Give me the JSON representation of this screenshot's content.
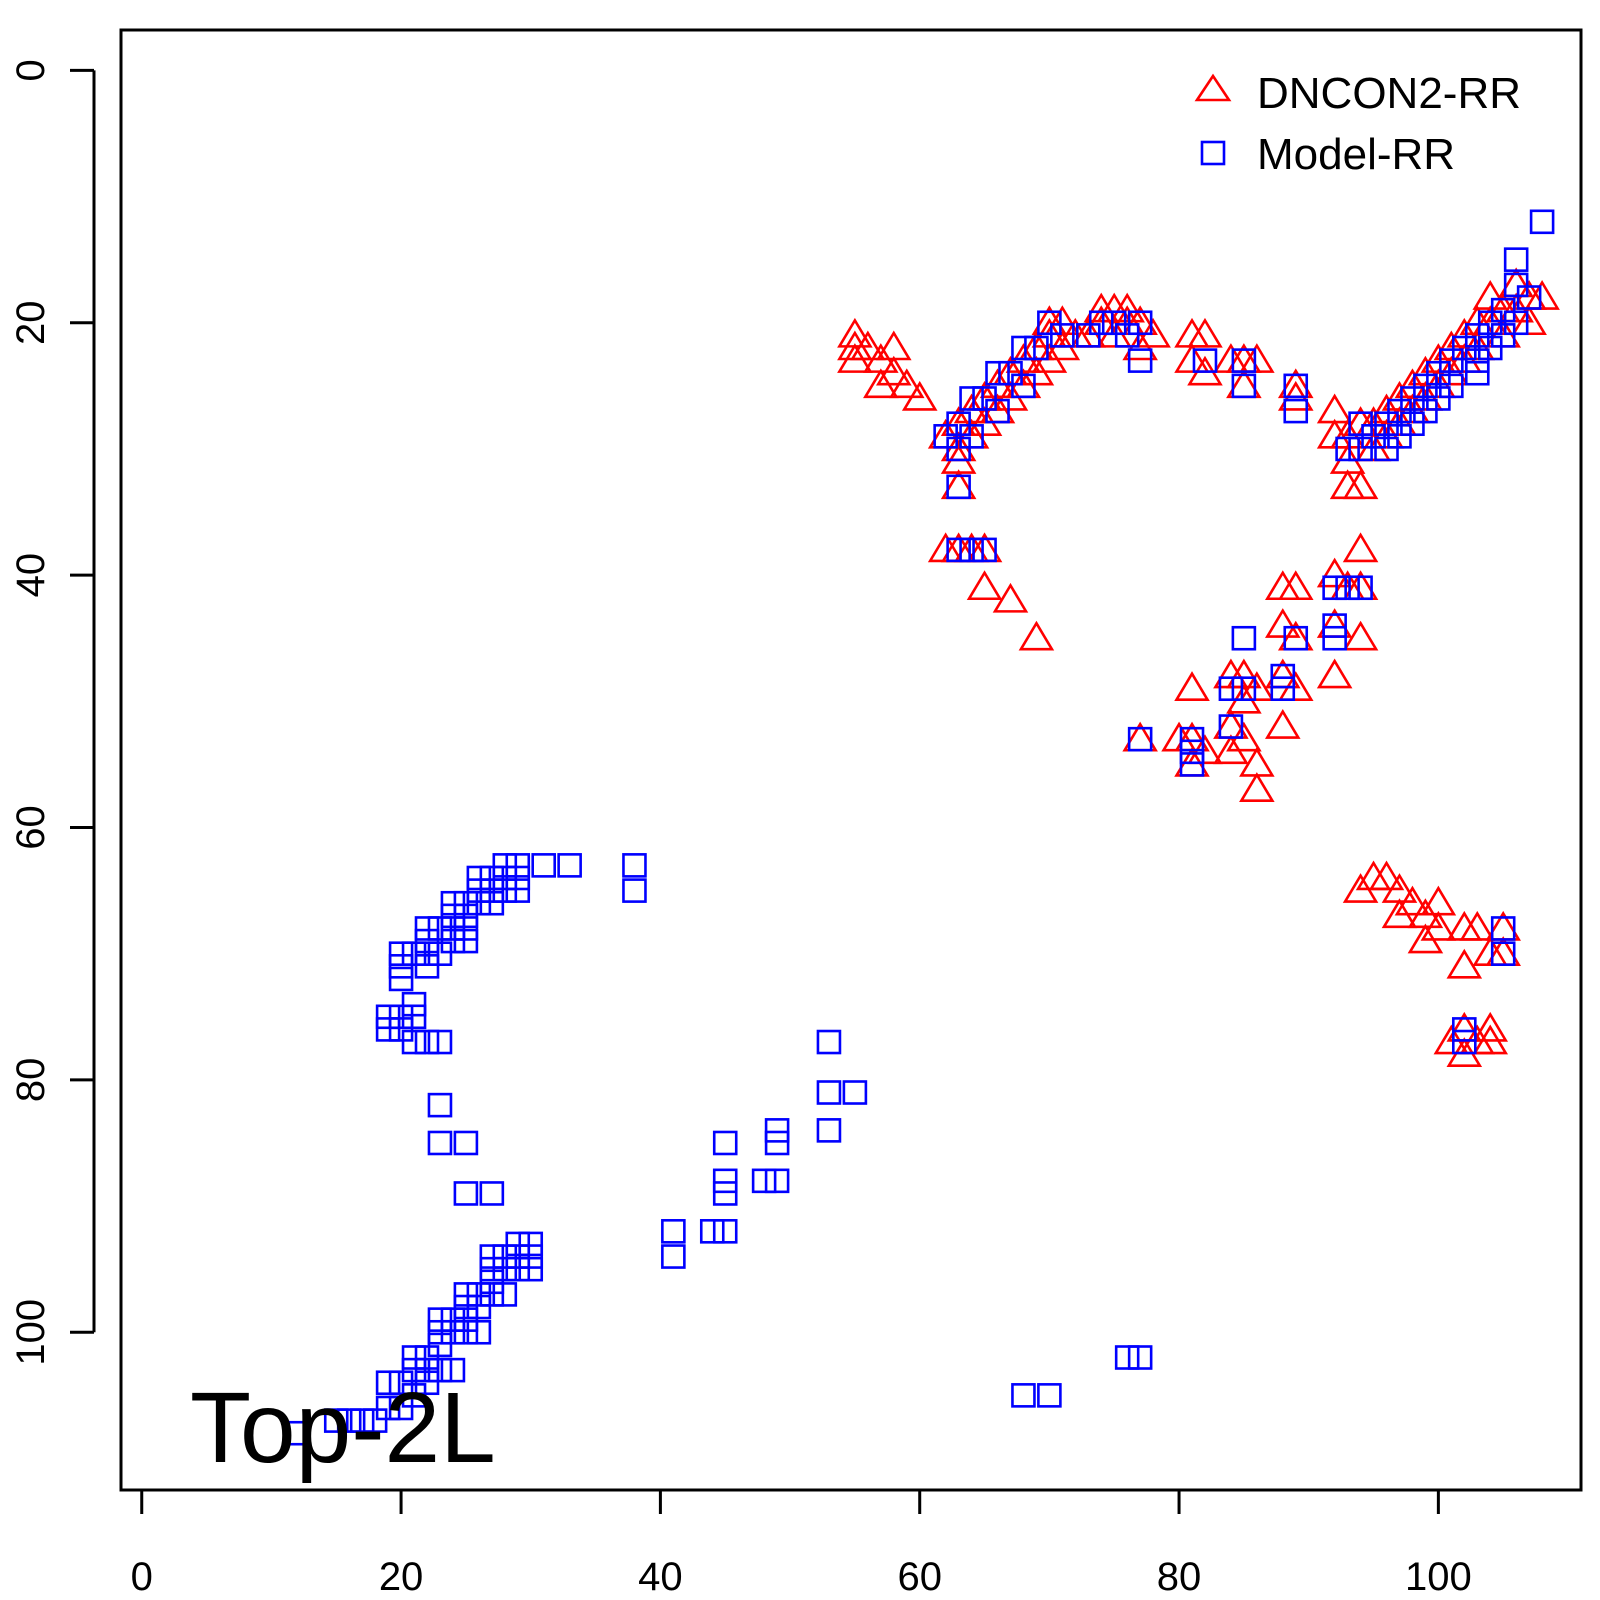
{
  "chart_data": {
    "type": "scatter",
    "title": "",
    "xlabel": "",
    "ylabel": "",
    "xlim": [
      -1.6,
      111
    ],
    "ylim": [
      -3.2,
      112.5
    ],
    "y_reversed": true,
    "grid": false,
    "annotation": "Top-2L",
    "legend_position": "top-right",
    "x_ticks": [
      0,
      20,
      40,
      60,
      80,
      100
    ],
    "y_ticks": [
      0,
      20,
      40,
      60,
      80,
      100
    ],
    "series": [
      {
        "name": "DNCON2-RR",
        "marker": "triangle",
        "color": "#ff0000",
        "points": [
          [
            55,
            21
          ],
          [
            55,
            22
          ],
          [
            55,
            23
          ],
          [
            56,
            22
          ],
          [
            57,
            23
          ],
          [
            57,
            25
          ],
          [
            58,
            22
          ],
          [
            58,
            24
          ],
          [
            59,
            25
          ],
          [
            60,
            26
          ],
          [
            62,
            29
          ],
          [
            63,
            28
          ],
          [
            63,
            30
          ],
          [
            63,
            31
          ],
          [
            63,
            33
          ],
          [
            64,
            27
          ],
          [
            64,
            29
          ],
          [
            65,
            26
          ],
          [
            65,
            28
          ],
          [
            66,
            25
          ],
          [
            66,
            27
          ],
          [
            67,
            24
          ],
          [
            67,
            26
          ],
          [
            68,
            23
          ],
          [
            68,
            25
          ],
          [
            69,
            22
          ],
          [
            69,
            24
          ],
          [
            70,
            20
          ],
          [
            70,
            21
          ],
          [
            70,
            23
          ],
          [
            71,
            20
          ],
          [
            71,
            22
          ],
          [
            72,
            21
          ],
          [
            73,
            21
          ],
          [
            74,
            19
          ],
          [
            74,
            20
          ],
          [
            75,
            19
          ],
          [
            75,
            21
          ],
          [
            76,
            19
          ],
          [
            76,
            20
          ],
          [
            77,
            20
          ],
          [
            77,
            22
          ],
          [
            78,
            21
          ],
          [
            81,
            21
          ],
          [
            81,
            23
          ],
          [
            82,
            21
          ],
          [
            82,
            24
          ],
          [
            84,
            23
          ],
          [
            85,
            23
          ],
          [
            85,
            25
          ],
          [
            86,
            23
          ],
          [
            89,
            25
          ],
          [
            89,
            26
          ],
          [
            92,
            27
          ],
          [
            92,
            29
          ],
          [
            93,
            29
          ],
          [
            93,
            31
          ],
          [
            93,
            33
          ],
          [
            94,
            28
          ],
          [
            94,
            33
          ],
          [
            95,
            28
          ],
          [
            95,
            30
          ],
          [
            96,
            27
          ],
          [
            96,
            29
          ],
          [
            97,
            26
          ],
          [
            97,
            28
          ],
          [
            98,
            25
          ],
          [
            98,
            27
          ],
          [
            99,
            24
          ],
          [
            99,
            26
          ],
          [
            100,
            23
          ],
          [
            100,
            25
          ],
          [
            101,
            22
          ],
          [
            101,
            24
          ],
          [
            102,
            21
          ],
          [
            102,
            23
          ],
          [
            103,
            20
          ],
          [
            103,
            22
          ],
          [
            104,
            18
          ],
          [
            104,
            20
          ],
          [
            105,
            19
          ],
          [
            105,
            21
          ],
          [
            106,
            17
          ],
          [
            106,
            19
          ],
          [
            107,
            18
          ],
          [
            107,
            20
          ],
          [
            108,
            18
          ],
          [
            62,
            38
          ],
          [
            63,
            38
          ],
          [
            64,
            38
          ],
          [
            65,
            38
          ],
          [
            65,
            41
          ],
          [
            67,
            42
          ],
          [
            69,
            45
          ],
          [
            94,
            38
          ],
          [
            92,
            40
          ],
          [
            93,
            41
          ],
          [
            94,
            41
          ],
          [
            92,
            44
          ],
          [
            94,
            45
          ],
          [
            92,
            48
          ],
          [
            88,
            41
          ],
          [
            89,
            41
          ],
          [
            88,
            44
          ],
          [
            89,
            45
          ],
          [
            88,
            48
          ],
          [
            89,
            49
          ],
          [
            88,
            52
          ],
          [
            81,
            49
          ],
          [
            84,
            48
          ],
          [
            85,
            48
          ],
          [
            85,
            50
          ],
          [
            86,
            49
          ],
          [
            84,
            52
          ],
          [
            84,
            54
          ],
          [
            85,
            53
          ],
          [
            86,
            55
          ],
          [
            86,
            57
          ],
          [
            77,
            53
          ],
          [
            80,
            53
          ],
          [
            81,
            53
          ],
          [
            81,
            55
          ],
          [
            82,
            54
          ],
          [
            94,
            65
          ],
          [
            95,
            64
          ],
          [
            96,
            64
          ],
          [
            97,
            65
          ],
          [
            97,
            67
          ],
          [
            98,
            66
          ],
          [
            99,
            67
          ],
          [
            99,
            69
          ],
          [
            100,
            66
          ],
          [
            100,
            68
          ],
          [
            102,
            68
          ],
          [
            102,
            71
          ],
          [
            103,
            68
          ],
          [
            104,
            70
          ],
          [
            105,
            68
          ],
          [
            105,
            70
          ],
          [
            101,
            77
          ],
          [
            102,
            76
          ],
          [
            102,
            78
          ],
          [
            103,
            77
          ],
          [
            104,
            76
          ],
          [
            104,
            77
          ]
        ]
      },
      {
        "name": "Model-RR",
        "marker": "square",
        "color": "#0000ff",
        "points": [
          [
            108,
            12
          ],
          [
            106,
            15
          ],
          [
            106,
            17
          ],
          [
            107,
            18
          ],
          [
            105,
            19
          ],
          [
            106,
            20
          ],
          [
            104,
            20
          ],
          [
            105,
            21
          ],
          [
            103,
            21
          ],
          [
            104,
            22
          ],
          [
            102,
            22
          ],
          [
            103,
            23
          ],
          [
            101,
            23
          ],
          [
            103,
            24
          ],
          [
            100,
            24
          ],
          [
            101,
            25
          ],
          [
            99,
            25
          ],
          [
            100,
            26
          ],
          [
            98,
            26
          ],
          [
            99,
            27
          ],
          [
            97,
            27
          ],
          [
            98,
            28
          ],
          [
            96,
            28
          ],
          [
            97,
            29
          ],
          [
            95,
            29
          ],
          [
            96,
            30
          ],
          [
            94,
            28
          ],
          [
            93,
            30
          ],
          [
            94,
            30
          ],
          [
            89,
            25
          ],
          [
            89,
            27
          ],
          [
            85,
            23
          ],
          [
            85,
            25
          ],
          [
            82,
            23
          ],
          [
            77,
            20
          ],
          [
            77,
            23
          ],
          [
            76,
            21
          ],
          [
            75,
            20
          ],
          [
            74,
            20
          ],
          [
            73,
            21
          ],
          [
            71,
            21
          ],
          [
            70,
            20
          ],
          [
            69,
            22
          ],
          [
            68,
            22
          ],
          [
            68,
            25
          ],
          [
            67,
            24
          ],
          [
            66,
            24
          ],
          [
            66,
            27
          ],
          [
            65,
            26
          ],
          [
            64,
            26
          ],
          [
            64,
            29
          ],
          [
            63,
            28
          ],
          [
            63,
            30
          ],
          [
            63,
            33
          ],
          [
            62,
            29
          ],
          [
            63,
            38
          ],
          [
            64,
            38
          ],
          [
            65,
            38
          ],
          [
            93,
            41
          ],
          [
            94,
            41
          ],
          [
            92,
            41
          ],
          [
            92,
            44
          ],
          [
            92,
            45
          ],
          [
            89,
            45
          ],
          [
            88,
            48
          ],
          [
            88,
            49
          ],
          [
            85,
            45
          ],
          [
            84,
            49
          ],
          [
            85,
            49
          ],
          [
            84,
            52
          ],
          [
            81,
            53
          ],
          [
            81,
            54
          ],
          [
            81,
            55
          ],
          [
            77,
            53
          ],
          [
            105,
            68
          ],
          [
            105,
            70
          ],
          [
            102,
            76
          ],
          [
            102,
            77
          ],
          [
            12,
            108
          ],
          [
            15,
            107
          ],
          [
            16,
            107
          ],
          [
            17,
            107
          ],
          [
            18,
            107
          ],
          [
            19,
            104
          ],
          [
            19,
            106
          ],
          [
            20,
            104
          ],
          [
            20,
            106
          ],
          [
            21,
            102
          ],
          [
            21,
            103
          ],
          [
            21,
            105
          ],
          [
            22,
            102
          ],
          [
            22,
            103
          ],
          [
            22,
            104
          ],
          [
            23,
            99
          ],
          [
            23,
            100
          ],
          [
            23,
            101
          ],
          [
            23,
            103
          ],
          [
            24,
            99
          ],
          [
            24,
            100
          ],
          [
            24,
            103
          ],
          [
            25,
            97
          ],
          [
            25,
            98
          ],
          [
            25,
            99
          ],
          [
            25,
            100
          ],
          [
            26,
            97
          ],
          [
            26,
            98
          ],
          [
            26,
            100
          ],
          [
            27,
            94
          ],
          [
            27,
            95
          ],
          [
            27,
            96
          ],
          [
            27,
            97
          ],
          [
            28,
            94
          ],
          [
            28,
            95
          ],
          [
            28,
            97
          ],
          [
            29,
            93
          ],
          [
            29,
            94
          ],
          [
            29,
            95
          ],
          [
            30,
            93
          ],
          [
            30,
            94
          ],
          [
            30,
            95
          ],
          [
            23,
            82
          ],
          [
            23,
            85
          ],
          [
            25,
            85
          ],
          [
            25,
            89
          ],
          [
            27,
            89
          ],
          [
            41,
            92
          ],
          [
            41,
            94
          ],
          [
            44,
            92
          ],
          [
            45,
            92
          ],
          [
            45,
            85
          ],
          [
            45,
            88
          ],
          [
            45,
            89
          ],
          [
            48,
            88
          ],
          [
            49,
            84
          ],
          [
            49,
            85
          ],
          [
            49,
            88
          ],
          [
            53,
            77
          ],
          [
            53,
            81
          ],
          [
            53,
            84
          ],
          [
            55,
            81
          ],
          [
            68,
            105
          ],
          [
            70,
            105
          ],
          [
            76,
            102
          ],
          [
            77,
            102
          ],
          [
            19,
            75
          ],
          [
            19,
            76
          ],
          [
            20,
            70
          ],
          [
            20,
            71
          ],
          [
            20,
            72
          ],
          [
            20,
            75
          ],
          [
            20,
            76
          ],
          [
            21,
            70
          ],
          [
            21,
            74
          ],
          [
            21,
            75
          ],
          [
            21,
            77
          ],
          [
            22,
            68
          ],
          [
            22,
            69
          ],
          [
            22,
            70
          ],
          [
            22,
            71
          ],
          [
            22,
            77
          ],
          [
            23,
            68
          ],
          [
            23,
            70
          ],
          [
            23,
            77
          ],
          [
            24,
            66
          ],
          [
            24,
            67
          ],
          [
            24,
            68
          ],
          [
            24,
            69
          ],
          [
            25,
            66
          ],
          [
            25,
            67
          ],
          [
            25,
            68
          ],
          [
            25,
            69
          ],
          [
            26,
            64
          ],
          [
            26,
            65
          ],
          [
            26,
            66
          ],
          [
            27,
            64
          ],
          [
            27,
            65
          ],
          [
            27,
            66
          ],
          [
            28,
            63
          ],
          [
            28,
            64
          ],
          [
            28,
            65
          ],
          [
            29,
            63
          ],
          [
            29,
            64
          ],
          [
            29,
            65
          ],
          [
            31,
            63
          ],
          [
            33,
            63
          ],
          [
            38,
            63
          ],
          [
            38,
            65
          ]
        ]
      }
    ]
  }
}
